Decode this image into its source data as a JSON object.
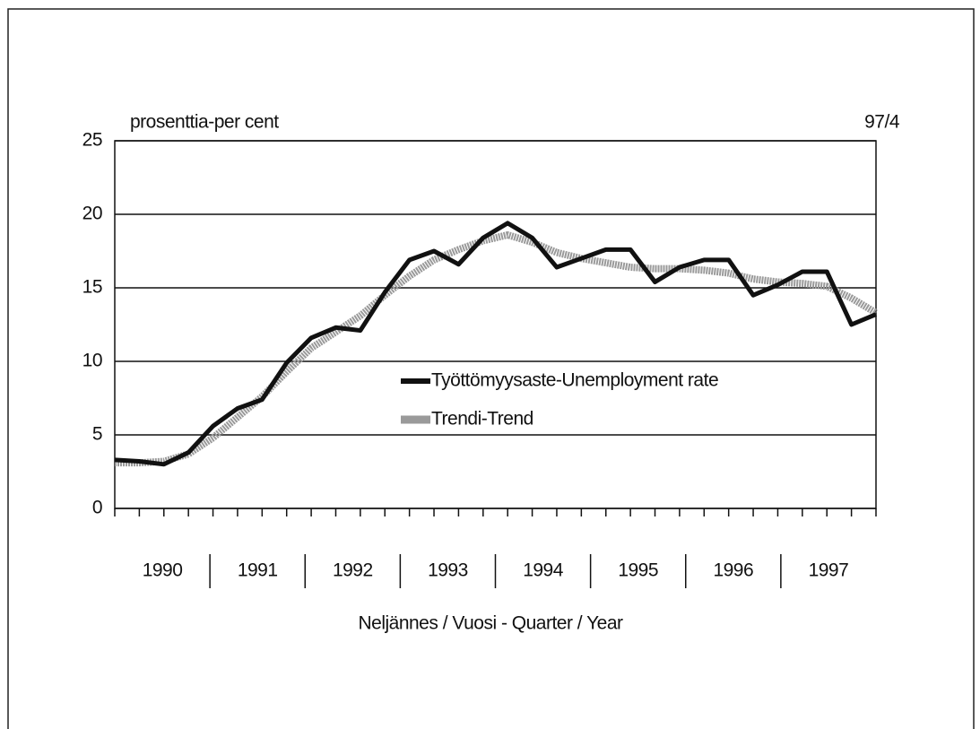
{
  "chart_data": {
    "type": "line",
    "y_label": "prosenttia-per cent",
    "note": "97/4",
    "x_label": "Neljännes /  Vuosi - Quarter / Year",
    "years": [
      "1990",
      "1991",
      "1992",
      "1993",
      "1994",
      "1995",
      "1996",
      "1997"
    ],
    "categories": [
      null,
      null,
      null,
      null,
      null,
      null,
      null,
      null,
      null,
      null,
      null,
      null,
      null,
      null,
      null,
      null,
      null,
      null,
      null,
      null,
      null,
      null,
      null,
      null,
      null,
      null,
      null,
      null,
      null,
      null,
      null,
      null
    ],
    "series": [
      {
        "name": "Työttömyysaste-Unemployment rate",
        "color": "#111111",
        "values": [
          3.3,
          3.2,
          3.0,
          3.8,
          5.6,
          6.8,
          7.4,
          9.9,
          11.6,
          12.3,
          12.1,
          14.7,
          16.9,
          17.5,
          16.6,
          18.4,
          19.4,
          18.4,
          16.4,
          17.0,
          17.6,
          17.6,
          15.4,
          16.4,
          16.9,
          16.9,
          14.5,
          15.2,
          16.1,
          16.1,
          12.5,
          13.2
        ]
      },
      {
        "name": "Trendi-Trend",
        "color": "#9a9a9a",
        "values": [
          3.1,
          3.1,
          3.2,
          3.7,
          4.8,
          6.2,
          7.6,
          9.3,
          10.9,
          12.0,
          13.1,
          14.5,
          15.8,
          16.9,
          17.6,
          18.2,
          18.6,
          18.1,
          17.4,
          17.0,
          16.7,
          16.4,
          16.3,
          16.3,
          16.2,
          16.0,
          15.6,
          15.4,
          15.3,
          15.1,
          14.3,
          13.3
        ]
      }
    ],
    "ylim": [
      0,
      25
    ],
    "yticks": [
      0,
      5,
      10,
      15,
      20,
      25
    ],
    "grid": true
  }
}
